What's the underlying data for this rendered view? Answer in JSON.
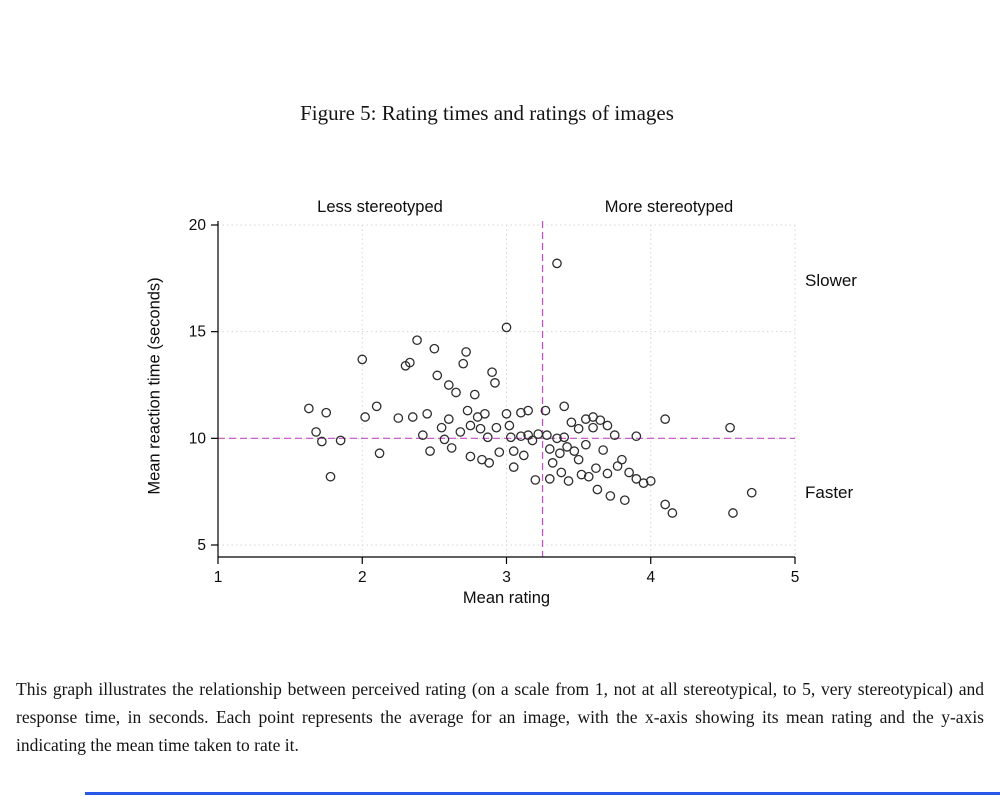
{
  "figure": {
    "title": "Figure 5: Rating times and ratings of images",
    "caption": "This graph illustrates the relationship between perceived rating (on a scale from 1, not at all stereotypical, to 5, very stereotypical) and response time, in seconds. Each point represents the average for an image, with the x-axis showing its mean rating and the y-axis indicating the mean time taken to rate it."
  },
  "chart_data": {
    "type": "scatter",
    "title": "Rating times and ratings of images",
    "xlabel": "Mean rating",
    "ylabel": "Mean reaction time (seconds)",
    "xlim": [
      1,
      5
    ],
    "ylim": [
      5,
      20
    ],
    "x_ticks": [
      1,
      2,
      3,
      4,
      5
    ],
    "y_ticks": [
      5,
      10,
      15,
      20
    ],
    "grid": true,
    "legend": "none",
    "annotations": {
      "left_region": "Less stereotyped",
      "right_region": "More stereotyped",
      "slow_side": "Slower",
      "fast_side": "Faster"
    },
    "reference_lines": {
      "x": 3.25,
      "y": 10,
      "color": "#c44fc4",
      "style": "dashed"
    },
    "marker": {
      "shape": "circle",
      "fill": "none",
      "stroke": "#2d2d2d"
    },
    "points": [
      [
        1.63,
        11.4
      ],
      [
        1.68,
        10.3
      ],
      [
        1.72,
        9.85
      ],
      [
        1.75,
        11.2
      ],
      [
        1.78,
        8.2
      ],
      [
        1.85,
        9.9
      ],
      [
        2.0,
        13.7
      ],
      [
        2.02,
        11.0
      ],
      [
        2.1,
        11.5
      ],
      [
        2.12,
        9.3
      ],
      [
        2.25,
        10.95
      ],
      [
        2.3,
        13.4
      ],
      [
        2.33,
        13.55
      ],
      [
        2.35,
        11.0
      ],
      [
        2.38,
        14.6
      ],
      [
        2.42,
        10.15
      ],
      [
        2.45,
        11.15
      ],
      [
        2.47,
        9.4
      ],
      [
        2.5,
        14.2
      ],
      [
        2.52,
        12.95
      ],
      [
        2.55,
        10.5
      ],
      [
        2.57,
        9.95
      ],
      [
        2.6,
        12.5
      ],
      [
        2.6,
        10.9
      ],
      [
        2.62,
        9.55
      ],
      [
        2.65,
        12.15
      ],
      [
        2.68,
        10.3
      ],
      [
        2.7,
        13.5
      ],
      [
        2.72,
        14.05
      ],
      [
        2.73,
        11.3
      ],
      [
        2.75,
        10.6
      ],
      [
        2.75,
        9.15
      ],
      [
        2.78,
        12.05
      ],
      [
        2.8,
        11.0
      ],
      [
        2.82,
        10.45
      ],
      [
        2.83,
        9.0
      ],
      [
        2.85,
        11.15
      ],
      [
        2.87,
        10.05
      ],
      [
        2.88,
        8.85
      ],
      [
        2.9,
        13.1
      ],
      [
        2.92,
        12.6
      ],
      [
        2.93,
        10.5
      ],
      [
        2.95,
        9.35
      ],
      [
        3.0,
        15.2
      ],
      [
        3.0,
        11.15
      ],
      [
        3.02,
        10.6
      ],
      [
        3.03,
        10.05
      ],
      [
        3.05,
        9.4
      ],
      [
        3.05,
        8.65
      ],
      [
        3.1,
        11.2
      ],
      [
        3.1,
        10.1
      ],
      [
        3.12,
        9.2
      ],
      [
        3.15,
        11.3
      ],
      [
        3.15,
        10.15
      ],
      [
        3.18,
        9.9
      ],
      [
        3.2,
        8.05
      ],
      [
        3.22,
        10.2
      ],
      [
        3.27,
        11.3
      ],
      [
        3.28,
        10.15
      ],
      [
        3.3,
        9.5
      ],
      [
        3.3,
        8.1
      ],
      [
        3.32,
        8.85
      ],
      [
        3.35,
        18.2
      ],
      [
        3.35,
        10.0
      ],
      [
        3.37,
        9.3
      ],
      [
        3.38,
        8.4
      ],
      [
        3.4,
        11.5
      ],
      [
        3.4,
        10.05
      ],
      [
        3.42,
        9.6
      ],
      [
        3.43,
        8.0
      ],
      [
        3.45,
        10.75
      ],
      [
        3.47,
        9.4
      ],
      [
        3.5,
        10.45
      ],
      [
        3.5,
        9.0
      ],
      [
        3.52,
        8.3
      ],
      [
        3.55,
        10.9
      ],
      [
        3.55,
        9.7
      ],
      [
        3.57,
        8.2
      ],
      [
        3.6,
        11.0
      ],
      [
        3.6,
        10.5
      ],
      [
        3.62,
        8.6
      ],
      [
        3.63,
        7.6
      ],
      [
        3.65,
        10.85
      ],
      [
        3.67,
        9.45
      ],
      [
        3.7,
        10.6
      ],
      [
        3.7,
        8.35
      ],
      [
        3.72,
        7.3
      ],
      [
        3.75,
        10.15
      ],
      [
        3.77,
        8.7
      ],
      [
        3.8,
        9.0
      ],
      [
        3.82,
        7.1
      ],
      [
        3.85,
        8.4
      ],
      [
        3.9,
        10.1
      ],
      [
        3.9,
        8.1
      ],
      [
        3.95,
        7.9
      ],
      [
        4.0,
        8.0
      ],
      [
        4.1,
        10.9
      ],
      [
        4.1,
        6.9
      ],
      [
        4.15,
        6.5
      ],
      [
        4.55,
        10.5
      ],
      [
        4.57,
        6.5
      ],
      [
        4.7,
        7.45
      ]
    ]
  }
}
